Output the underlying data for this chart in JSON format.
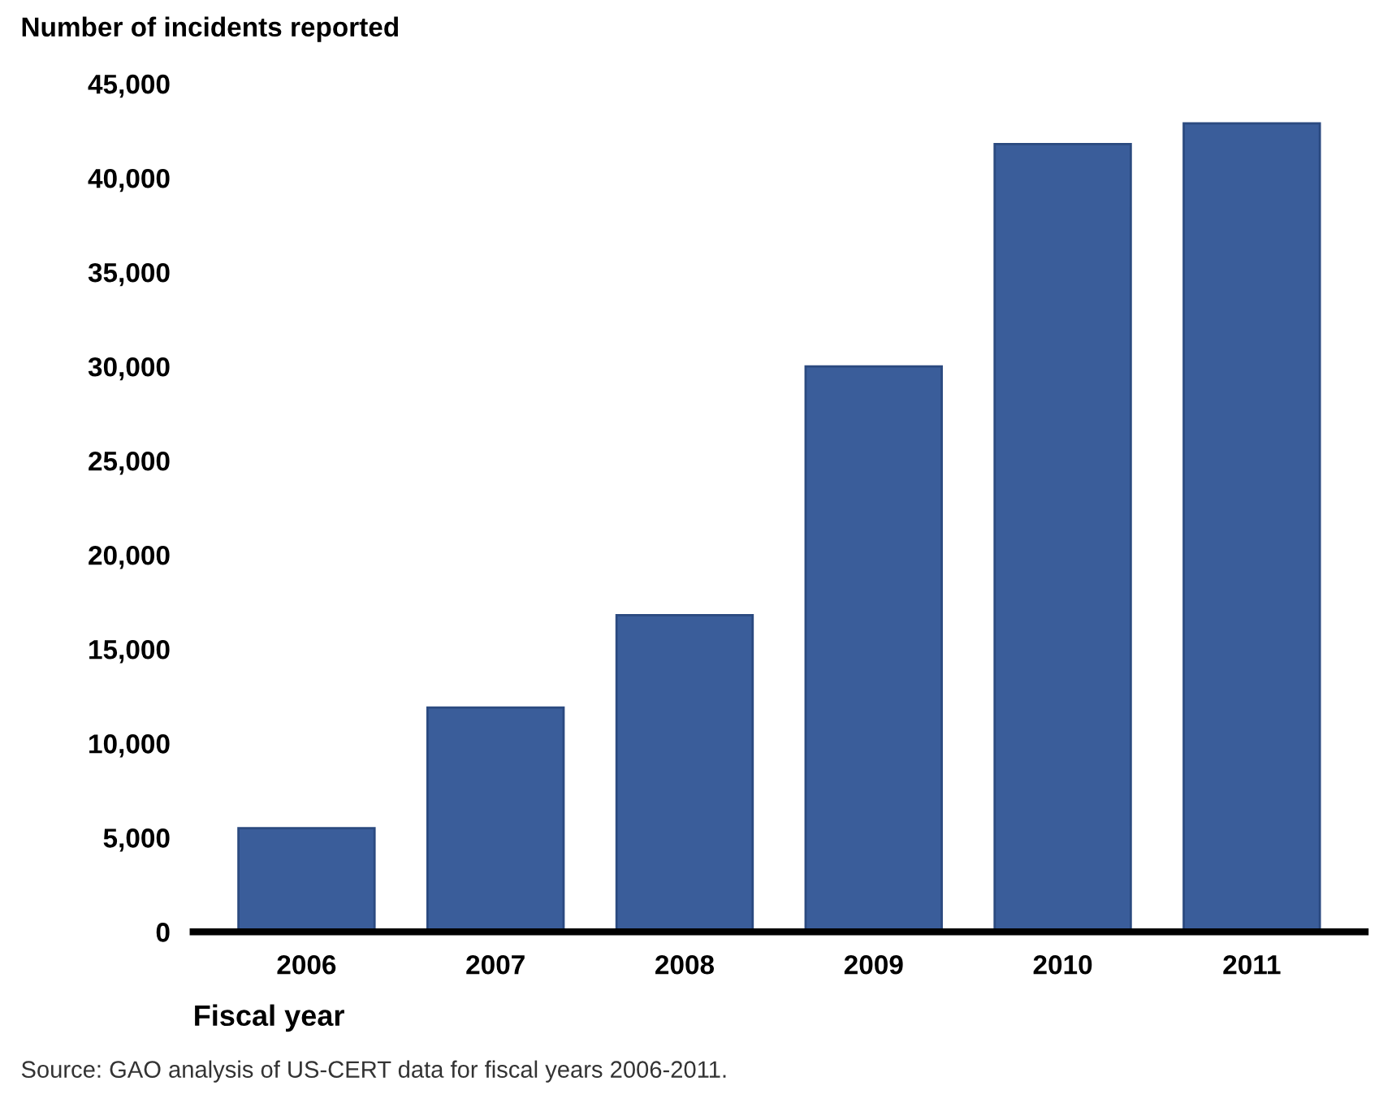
{
  "chart_data": {
    "type": "bar",
    "title": "Number of incidents reported",
    "xlabel": "Fiscal year",
    "categories": [
      "2006",
      "2007",
      "2008",
      "2009",
      "2010",
      "2011"
    ],
    "values": [
      5500,
      11900,
      16800,
      30000,
      41800,
      42900
    ],
    "color": "#3a5d9a",
    "ylim": [
      0,
      45000
    ],
    "yticks": [
      0,
      {
        "value": 5000,
        "label": "5,000"
      },
      {
        "value": 10000,
        "label": "10,000"
      },
      {
        "value": 15000,
        "label": "15,000"
      },
      {
        "value": 20000,
        "label": "20,000"
      },
      {
        "value": 25000,
        "label": "25,000"
      },
      {
        "value": 30000,
        "label": "30,000"
      },
      {
        "value": 35000,
        "label": "35,000"
      },
      {
        "value": 40000,
        "label": "40,000"
      },
      {
        "value": 45000,
        "label": "45,000"
      }
    ],
    "grid": false,
    "legend": false,
    "annotations": [
      "Source: GAO analysis of US-CERT data for fiscal years 2006-2011."
    ]
  }
}
